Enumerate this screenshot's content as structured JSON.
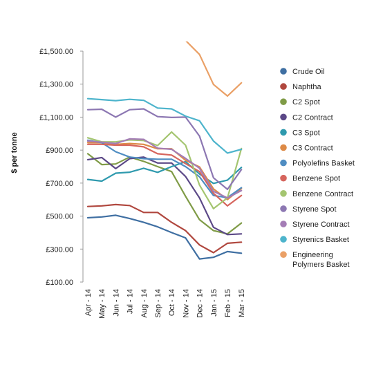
{
  "chart_data": {
    "type": "line",
    "title": "",
    "xlabel": "",
    "ylabel": "$ per tonne",
    "ylim": [
      100,
      1500
    ],
    "yticks": [
      100,
      300,
      500,
      700,
      900,
      1100,
      1300,
      1500
    ],
    "ytick_labels": [
      "£100.00",
      "£300.00",
      "£500.00",
      "£700.00",
      "£900.00",
      "£1,100.00",
      "£1,300.00",
      "£1,500.00"
    ],
    "grid": false,
    "legend_position": "right",
    "categories": [
      "Apr - 14",
      "May - 14",
      "Jun - 14",
      "Jul - 14",
      "Aug - 14",
      "Sep - 14",
      "Oct - 14",
      "Nov - 14",
      "Dec - 14",
      "Jan - 15",
      "Feb - 15",
      "Mar - 15"
    ],
    "series": [
      {
        "name": "Crude Oil",
        "color": "#3f6fa2",
        "values": [
          490,
          495,
          505,
          485,
          462,
          435,
          400,
          368,
          240,
          250,
          285,
          275
        ]
      },
      {
        "name": "Naphtha",
        "color": "#b0473e",
        "values": [
          558,
          562,
          570,
          564,
          522,
          522,
          462,
          412,
          325,
          278,
          335,
          342
        ]
      },
      {
        "name": "C2 Spot",
        "color": "#7f9b46",
        "values": [
          878,
          812,
          816,
          858,
          832,
          800,
          770,
          620,
          478,
          412,
          392,
          458
        ]
      },
      {
        "name": "C2 Contract",
        "color": "#5b4887",
        "values": [
          842,
          855,
          788,
          848,
          858,
          822,
          822,
          740,
          610,
          432,
          388,
          392
        ]
      },
      {
        "name": "C3 Spot",
        "color": "#2f9aae",
        "values": [
          722,
          712,
          760,
          766,
          790,
          765,
          800,
          830,
          755,
          698,
          718,
          795
        ]
      },
      {
        "name": "C3 Contract",
        "color": "#dd8a46",
        "values": [
          945,
          945,
          935,
          940,
          935,
          908,
          908,
          838,
          798,
          665,
          600,
          668
        ]
      },
      {
        "name": "Polyolefins Basket",
        "color": "#4f8dc2",
        "values": [
          960,
          945,
          890,
          858,
          848,
          845,
          845,
          800,
          738,
          625,
          612,
          672
        ]
      },
      {
        "name": "Benzene Spot",
        "color": "#d6655d",
        "values": [
          935,
          935,
          930,
          930,
          920,
          878,
          870,
          818,
          770,
          638,
          562,
          625
        ]
      },
      {
        "name": "Benzene Contract",
        "color": "#a4c570",
        "values": [
          975,
          950,
          950,
          962,
          958,
          928,
          1010,
          930,
          688,
          545,
          610,
          910
        ]
      },
      {
        "name": "Styrene Spot",
        "color": "#8c77b2",
        "values": [
          1145,
          1148,
          1100,
          1145,
          1150,
          1103,
          1098,
          1100,
          985,
          732,
          662,
          782
        ]
      },
      {
        "name": "Styrene Contract",
        "color": "#a47db6",
        "values": [
          955,
          948,
          940,
          968,
          965,
          912,
          905,
          850,
          790,
          650,
          610,
          655
        ]
      },
      {
        "name": "Styrenics Basket",
        "color": "#4db4cc",
        "values": [
          1212,
          1206,
          1200,
          1208,
          1202,
          1155,
          1150,
          1106,
          1078,
          955,
          882,
          905
        ]
      },
      {
        "name": "Engineering Polymers Basket",
        "color": "#eaa066",
        "values": [
          null,
          null,
          null,
          null,
          null,
          null,
          null,
          1565,
          1480,
          1298,
          1228,
          1308
        ]
      }
    ]
  }
}
